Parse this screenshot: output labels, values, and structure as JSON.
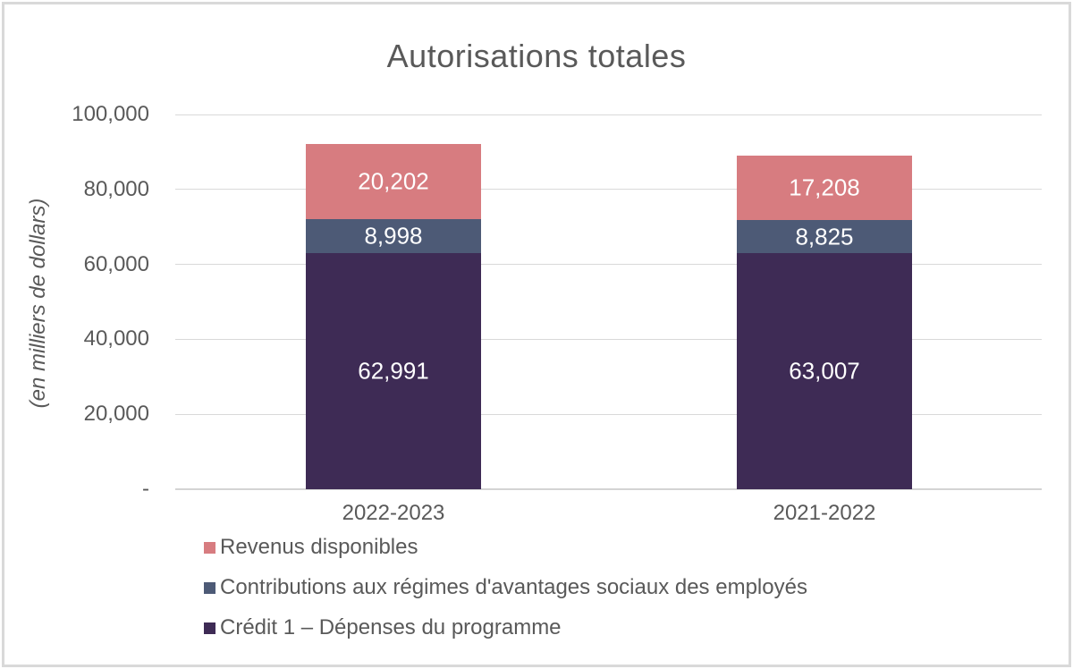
{
  "chart_data": {
    "type": "bar",
    "stacked": true,
    "title": "Autorisations totales",
    "ylabel": "(en milliers de dollars)",
    "xlabel": "",
    "categories": [
      "2022-2023",
      "2021-2022"
    ],
    "series": [
      {
        "name": "Crédit 1 – Dépenses du programme",
        "color": "#3e2b55",
        "values": [
          62991,
          63007
        ],
        "data_labels": [
          "62,991",
          "63,007"
        ]
      },
      {
        "name": "Contributions aux régimes d'avantages sociaux des employés",
        "color": "#4d5a76",
        "values": [
          8998,
          8825
        ],
        "data_labels": [
          "8,998",
          "8,825"
        ]
      },
      {
        "name": "Revenus disponibles",
        "color": "#d77c80",
        "values": [
          20202,
          17208
        ],
        "data_labels": [
          "20,202",
          "17,208"
        ]
      }
    ],
    "stack_order": "bottom-to-top",
    "legend_order": [
      2,
      1,
      0
    ],
    "legend_position": "bottom-left",
    "ylim": [
      0,
      100000
    ],
    "yticks": [
      {
        "value": 100000,
        "label": "100,000"
      },
      {
        "value": 80000,
        "label": "80,000"
      },
      {
        "value": 60000,
        "label": "60,000"
      },
      {
        "value": 40000,
        "label": "40,000"
      },
      {
        "value": 20000,
        "label": "20,000"
      },
      {
        "value": 0,
        "label": "-"
      }
    ],
    "grid": true
  },
  "style": {
    "text_color": "#595959",
    "grid_color": "#d9d9d9",
    "border_color": "#d9d9d9",
    "bar_label_color": "#ffffff",
    "background": "#ffffff"
  }
}
